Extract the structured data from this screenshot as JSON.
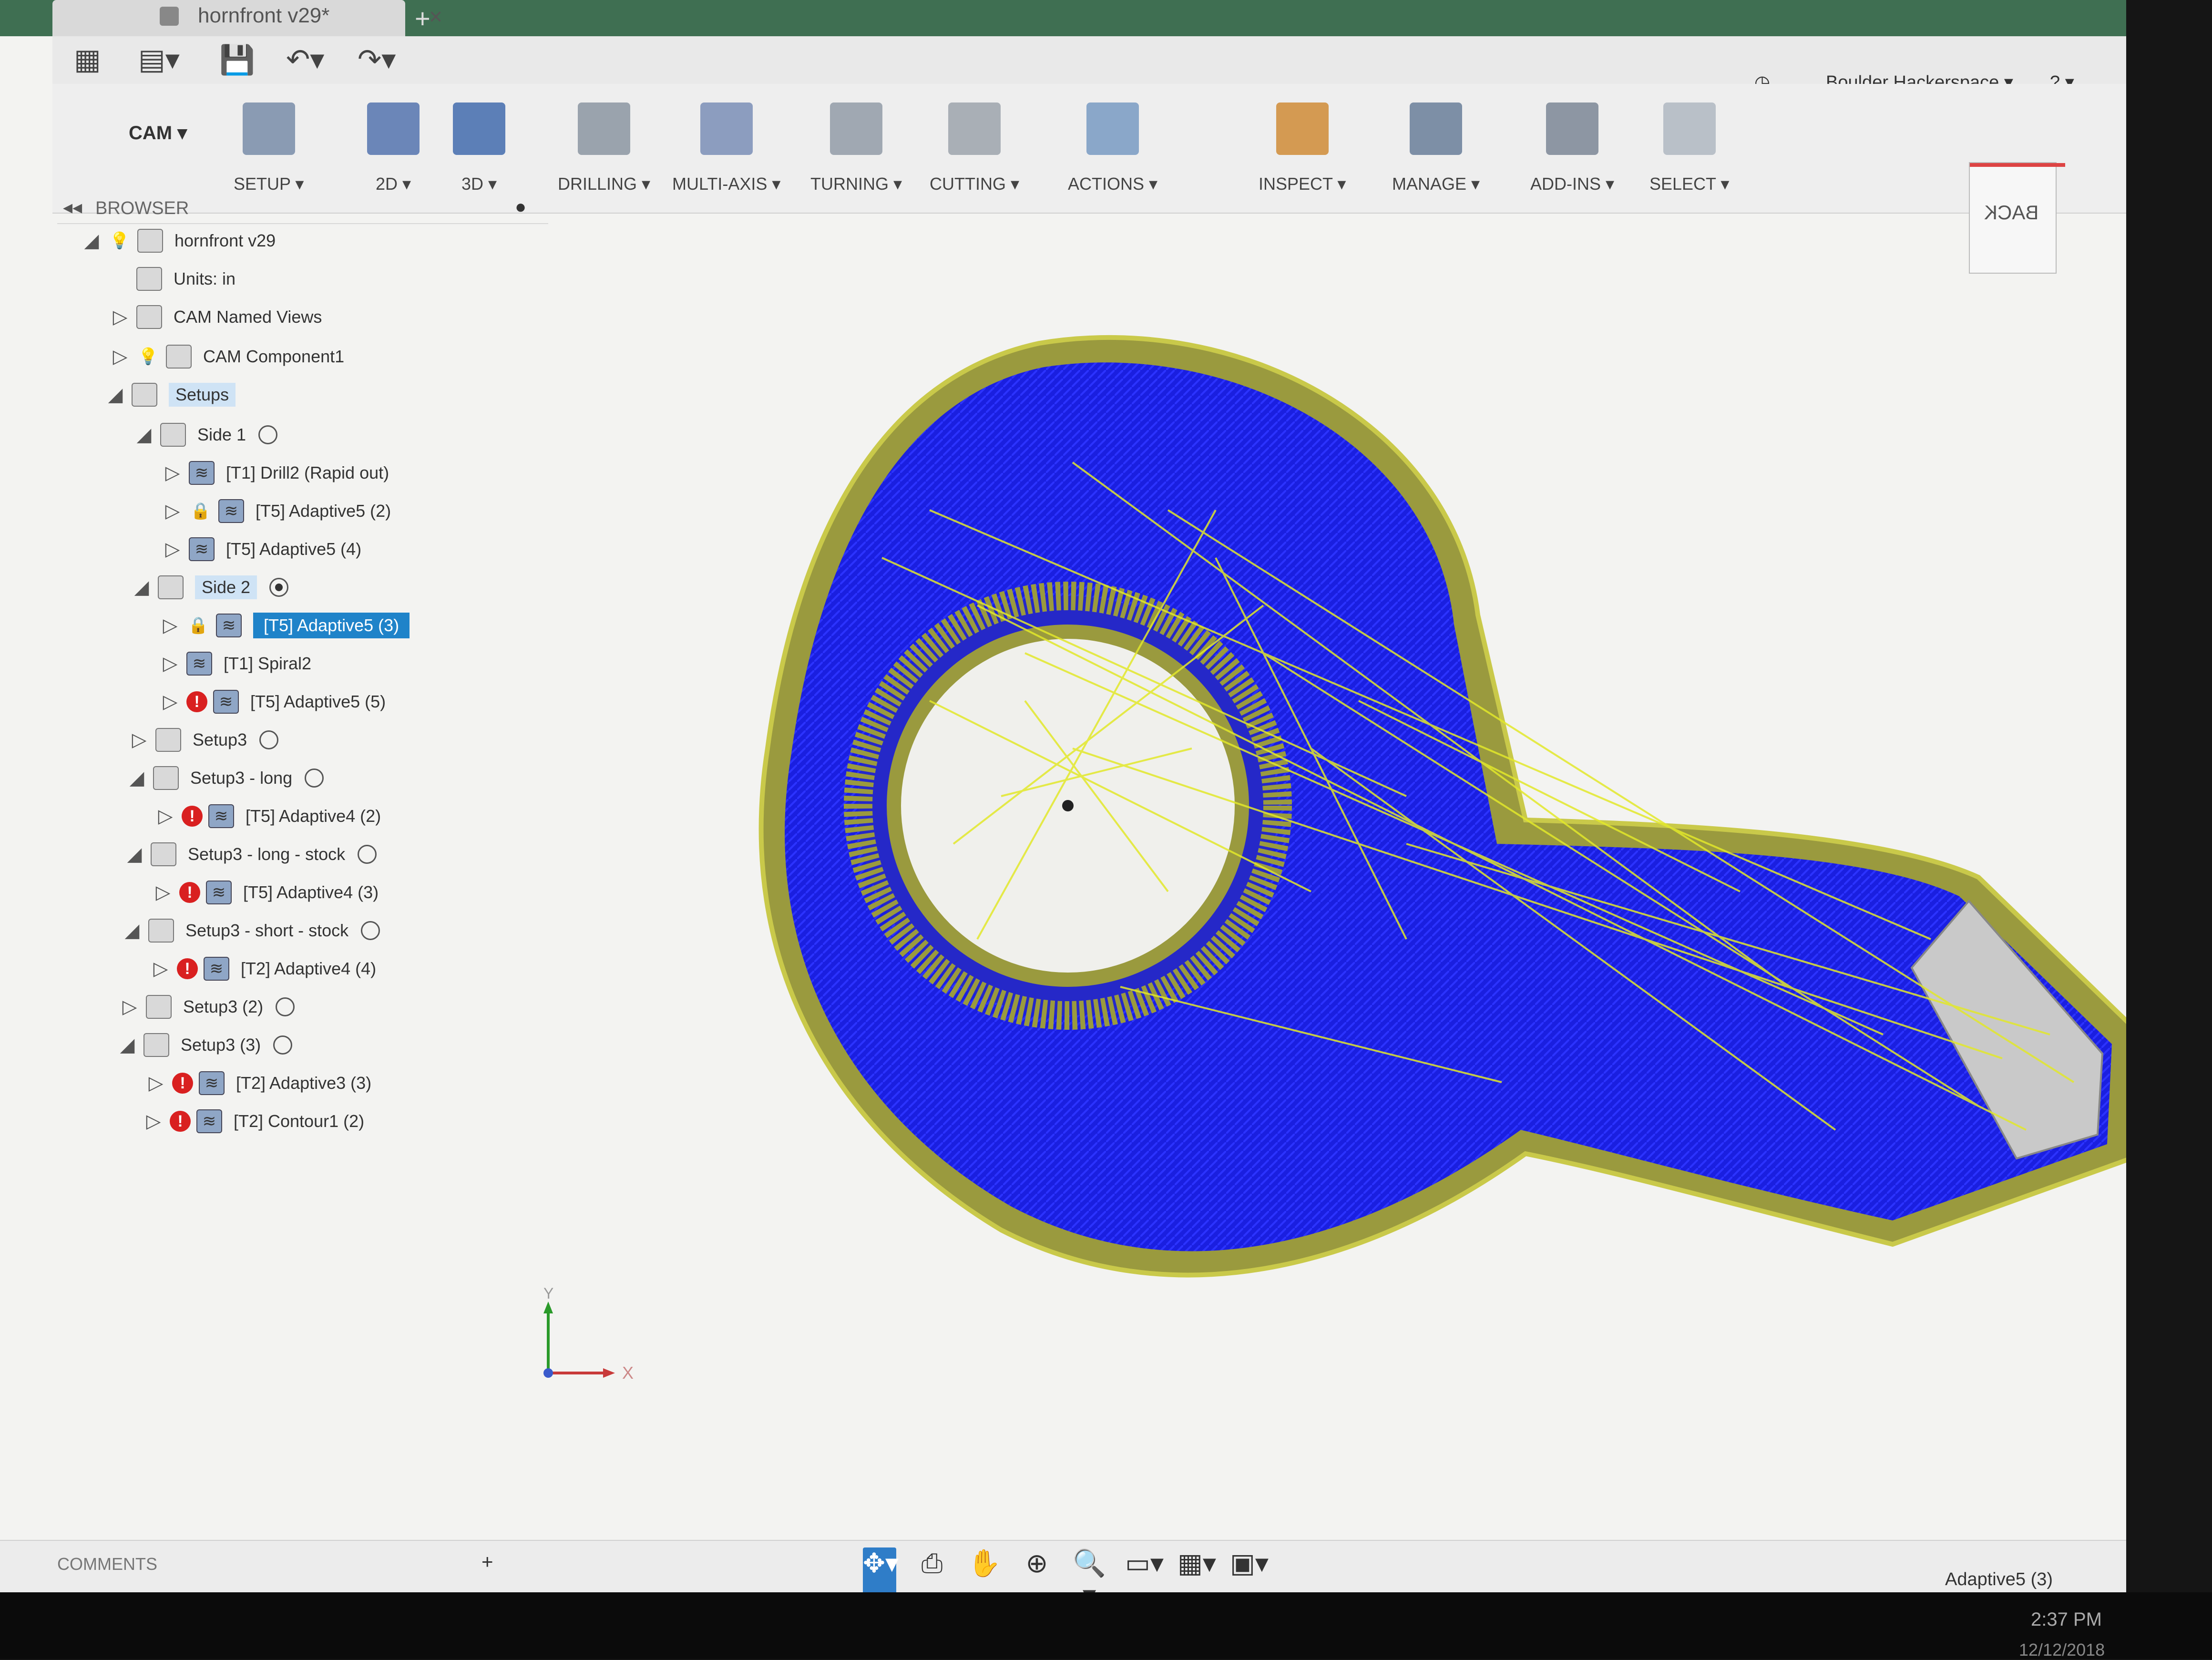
{
  "window": {
    "tab_title": "hornfront v29*",
    "close_glyph": "×",
    "new_tab_glyph": "+"
  },
  "quick_access": {
    "grid": "▦",
    "file": "▤▾",
    "save": "💾",
    "undo": "↶▾",
    "redo": "↷▾"
  },
  "topright": {
    "clock_icon": "◷",
    "user": "Boulder Hackerspace ▾",
    "help": "? ▾"
  },
  "ribbon": {
    "workspace": "CAM ▾",
    "groups": [
      {
        "label": "SETUP ▾",
        "color": "#8a9bb3"
      },
      {
        "label": "2D ▾",
        "color": "#6b86b8"
      },
      {
        "label": "3D ▾",
        "color": "#5c7fb7"
      },
      {
        "label": "DRILLING ▾",
        "color": "#9aa3ad"
      },
      {
        "label": "MULTI-AXIS ▾",
        "color": "#8c9dbf"
      },
      {
        "label": "TURNING ▾",
        "color": "#a0a8b2"
      },
      {
        "label": "CUTTING ▾",
        "color": "#a9afb6"
      },
      {
        "label": "ACTIONS ▾",
        "color": "#8aa7c9"
      },
      {
        "label": "INSPECT ▾",
        "color": "#d49a52"
      },
      {
        "label": "MANAGE ▾",
        "color": "#7d8fa6"
      },
      {
        "label": "ADD-INS ▾",
        "color": "#8d96a3"
      },
      {
        "label": "SELECT ▾",
        "color": "#b9c0c8"
      }
    ]
  },
  "browser": {
    "title": "BROWSER",
    "collapse_glyph": "◂◂",
    "pin_glyph": "●",
    "rows": [
      {
        "label": "hornfront v29"
      },
      {
        "label": "Units: in"
      },
      {
        "label": "CAM Named Views"
      },
      {
        "label": "CAM Component1"
      },
      {
        "label": "Setups"
      },
      {
        "label": "Side 1"
      },
      {
        "label": "[T1] Drill2 (Rapid out)"
      },
      {
        "label": "[T5] Adaptive5 (2)"
      },
      {
        "label": "[T5] Adaptive5 (4)"
      },
      {
        "label": "Side 2"
      },
      {
        "label": "[T5] Adaptive5 (3)"
      },
      {
        "label": "[T1] Spiral2"
      },
      {
        "label": "[T5] Adaptive5 (5)"
      },
      {
        "label": "Setup3"
      },
      {
        "label": "Setup3 - long"
      },
      {
        "label": "[T5] Adaptive4 (2)"
      },
      {
        "label": "Setup3 - long - stock"
      },
      {
        "label": "[T5] Adaptive4 (3)"
      },
      {
        "label": "Setup3 - short - stock"
      },
      {
        "label": "[T2] Adaptive4 (4)"
      },
      {
        "label": "Setup3 (2)"
      },
      {
        "label": "Setup3 (3)"
      },
      {
        "label": "[T2] Adaptive3 (3)"
      },
      {
        "label": "[T2] Contour1 (2)"
      }
    ]
  },
  "viewcube": {
    "face": "BACK"
  },
  "axes": {
    "x": "X",
    "y": "Y"
  },
  "comments": {
    "label": "COMMENTS",
    "add": "+"
  },
  "nav_tools": [
    "✥▾",
    "⎙",
    "✋",
    "⊕",
    "🔍▾",
    "▭▾",
    "▦▾",
    "▣▾"
  ],
  "status": {
    "selected_operation": "Adaptive5 (3)"
  },
  "taskbar": {
    "time": "2:37 PM",
    "date": "12/12/2018"
  },
  "colors": {
    "toolpath_blue": "#1a1fe0",
    "rapid_yellow": "#e2e82a",
    "selection_blue": "#1f83c9",
    "error_red": "#d92020"
  }
}
